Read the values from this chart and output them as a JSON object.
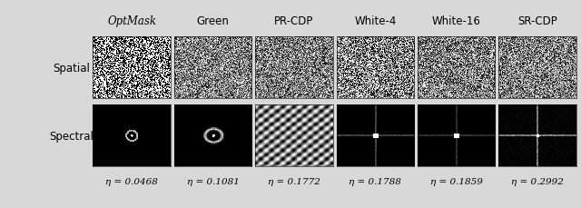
{
  "col_labels": [
    "OptMask",
    "Green",
    "PR-CDP",
    "White-4",
    "White-16",
    "SR-CDP"
  ],
  "col_label_italic": [
    true,
    false,
    false,
    false,
    false,
    false
  ],
  "row_labels": [
    "Spatial",
    "Spectral"
  ],
  "eta_values": [
    "0.0468",
    "0.1081",
    "0.1772",
    "0.1788",
    "0.1859",
    "0.2992"
  ],
  "eta_symbol": "η",
  "n_cols": 6,
  "n_rows": 2,
  "fig_width": 6.4,
  "fig_height": 2.3,
  "col_label_fontsize": 8.5,
  "row_label_fontsize": 8.5,
  "eta_fontsize": 7.5
}
